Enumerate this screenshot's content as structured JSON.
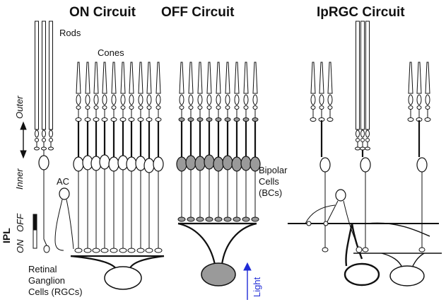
{
  "titles": {
    "on": "ON Circuit",
    "off": "OFF Circuit",
    "iprgc": "IpRGC Circuit"
  },
  "labels": {
    "rods": "Rods",
    "cones": "Cones",
    "outer": "Outer",
    "inner": "Inner",
    "ac": "AC",
    "ipl": "IPL",
    "on": "ON",
    "off": "OFF",
    "rgc_line1": "Retinal",
    "rgc_line2": "Ganglion",
    "rgc_line3": "Cells (RGCs)",
    "bipolar_line1": "Bipolar",
    "bipolar_line2": "Cells",
    "bipolar_line3": "(BCs)",
    "light": "Light"
  },
  "colors": {
    "ink": "#111111",
    "off_fill": "#9a9a9a",
    "light_arrow": "#1f2bd6"
  },
  "arrows": [
    "outer-inner-double-arrow",
    "light-arrow"
  ]
}
